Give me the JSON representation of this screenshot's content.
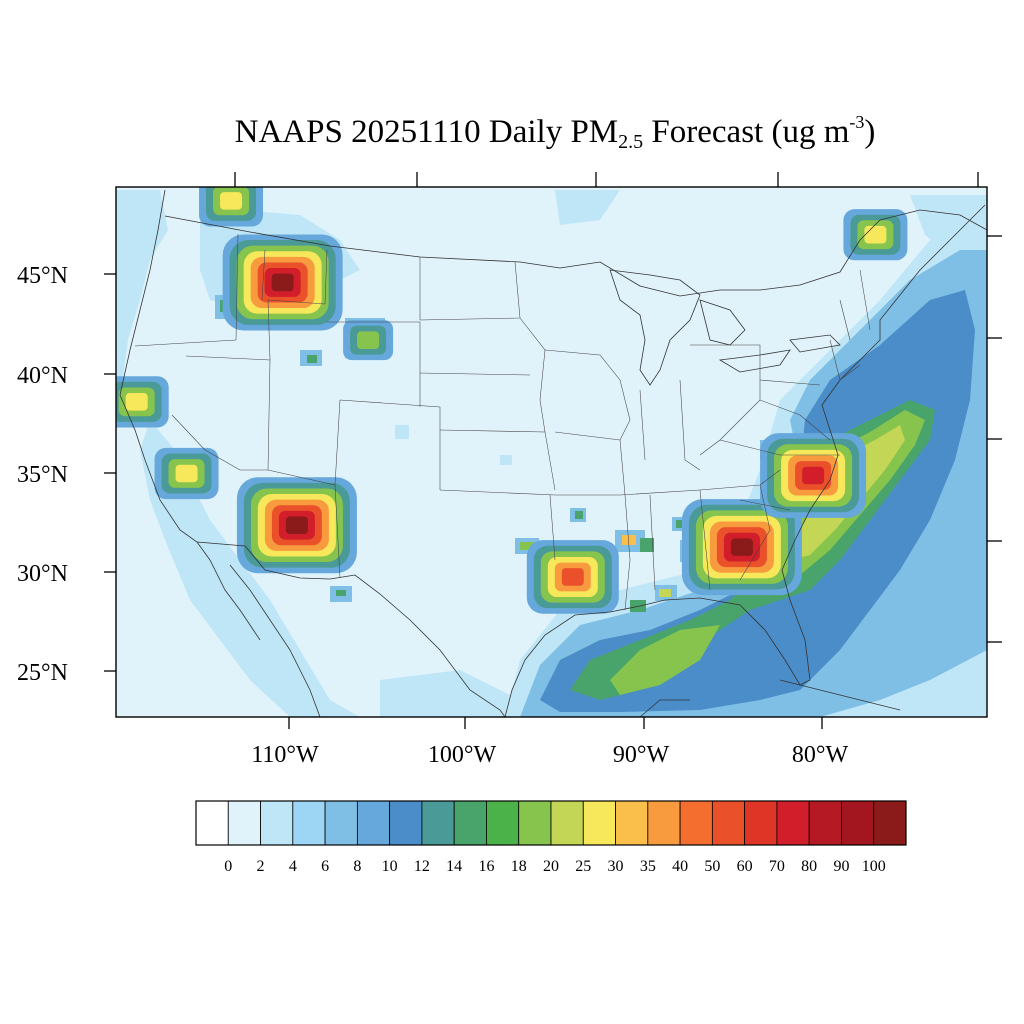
{
  "title": {
    "main": "NAAPS 20251110 Daily PM",
    "sub": "2.5",
    "rest": " Forecast (ug m",
    "sup": "-3",
    "end": ")"
  },
  "map": {
    "lat_labels": [
      "45°N",
      "40°N",
      "35°N",
      "30°N",
      "25°N"
    ],
    "lon_labels": [
      "110°W",
      "100°W",
      "90°W",
      "80°W"
    ],
    "background_color": "#e0f3fb",
    "hotspots": [
      {
        "name": "montana-plume",
        "lon": -110.3,
        "lat": 44.6,
        "level": 7
      },
      {
        "name": "arizona-plume",
        "lon": -109.5,
        "lat": 32.4,
        "level": 7
      },
      {
        "name": "georgia-plume",
        "lon": -84.5,
        "lat": 31.3,
        "level": 7
      },
      {
        "name": "carolina-plume",
        "lon": -80.5,
        "lat": 34.9,
        "level": 6
      },
      {
        "name": "louisiana-plume",
        "lon": -94.0,
        "lat": 29.8,
        "level": 5
      },
      {
        "name": "nevada-spot",
        "lon": -115.7,
        "lat": 35.0,
        "level": 3
      },
      {
        "name": "nw-california-spot",
        "lon": -118.5,
        "lat": 38.6,
        "level": 3
      },
      {
        "name": "idaho-spot",
        "lon": -113.2,
        "lat": 48.7,
        "level": 3
      },
      {
        "name": "wyoming-spot",
        "lon": -105.5,
        "lat": 41.7,
        "level": 2
      },
      {
        "name": "maine-spot",
        "lon": -77.0,
        "lat": 47.0,
        "level": 3
      }
    ]
  },
  "colorbar": {
    "labels": [
      "0",
      "2",
      "4",
      "6",
      "8",
      "10",
      "12",
      "14",
      "16",
      "18",
      "20",
      "25",
      "30",
      "35",
      "40",
      "50",
      "60",
      "70",
      "80",
      "90",
      "100"
    ],
    "colors": [
      "#ffffff",
      "#e0f3fb",
      "#bfe6f7",
      "#9dd6f4",
      "#7fbfe6",
      "#66a8db",
      "#4a8dc8",
      "#4a9a98",
      "#48a46a",
      "#4bb24a",
      "#86c44d",
      "#c4d655",
      "#f6e85a",
      "#f9bf4a",
      "#f89a3e",
      "#f36e2f",
      "#ea512b",
      "#de3527",
      "#d11e2a",
      "#b51a24",
      "#a3161f",
      "#8b1a1a"
    ]
  }
}
